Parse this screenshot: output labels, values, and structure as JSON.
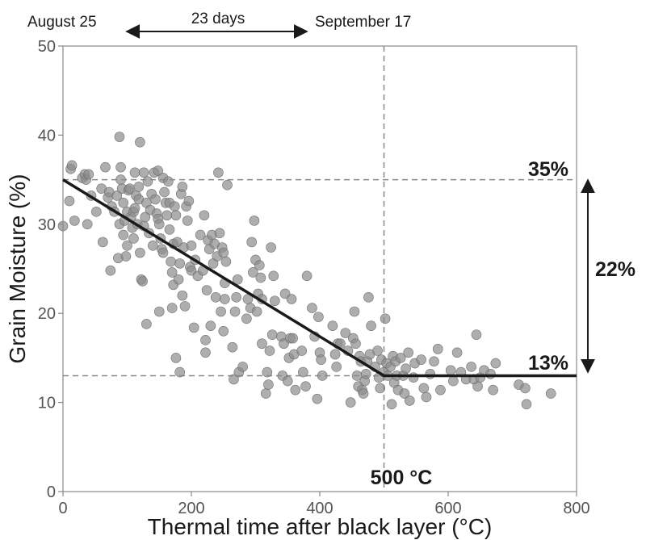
{
  "chart_data": {
    "type": "scatter",
    "title": "",
    "xlabel": "Thermal time after black layer (°C)",
    "ylabel": "Grain Moisture (%)",
    "xlim": [
      0,
      800
    ],
    "ylim": [
      0,
      50
    ],
    "x_ticks": [
      0,
      200,
      400,
      600,
      800
    ],
    "y_ticks": [
      0,
      10,
      20,
      30,
      40,
      50
    ],
    "x_tick_labels": [
      "0",
      "200",
      "400",
      "600",
      "800"
    ],
    "y_tick_labels": [
      "0",
      "10",
      "20",
      "30",
      "40",
      "50"
    ],
    "grid": false,
    "point_color": "#8c8c8c",
    "line_color": "#1a1a1a",
    "series": [
      {
        "type": "scatter",
        "points": [
          [
            0,
            29.8
          ],
          [
            10,
            32.6
          ],
          [
            12,
            36.2
          ],
          [
            14,
            36.6
          ],
          [
            18,
            30.4
          ],
          [
            30,
            35.2
          ],
          [
            34,
            35.6
          ],
          [
            36,
            35.0
          ],
          [
            38,
            30.0
          ],
          [
            40,
            35.6
          ],
          [
            44,
            33.2
          ],
          [
            52,
            31.4
          ],
          [
            60,
            34.0
          ],
          [
            62,
            28.0
          ],
          [
            66,
            36.4
          ],
          [
            70,
            33.0
          ],
          [
            72,
            33.6
          ],
          [
            74,
            24.8
          ],
          [
            76,
            32.0
          ],
          [
            80,
            31.4
          ],
          [
            84,
            33.2
          ],
          [
            86,
            26.2
          ],
          [
            88,
            30.0
          ],
          [
            88,
            39.8
          ],
          [
            90,
            36.4
          ],
          [
            90,
            35.0
          ],
          [
            92,
            34.0
          ],
          [
            94,
            32.4
          ],
          [
            94,
            28.8
          ],
          [
            96,
            30.4
          ],
          [
            98,
            26.4
          ],
          [
            100,
            27.6
          ],
          [
            100,
            31.4
          ],
          [
            102,
            33.8
          ],
          [
            104,
            34.0
          ],
          [
            106,
            30.8
          ],
          [
            108,
            29.6
          ],
          [
            110,
            28.4
          ],
          [
            110,
            31.4
          ],
          [
            112,
            35.8
          ],
          [
            112,
            31.8
          ],
          [
            114,
            33.2
          ],
          [
            116,
            30.0
          ],
          [
            118,
            32.8
          ],
          [
            118,
            34.2
          ],
          [
            120,
            39.2
          ],
          [
            120,
            26.8
          ],
          [
            122,
            23.8
          ],
          [
            124,
            23.6
          ],
          [
            126,
            35.8
          ],
          [
            126,
            29.8
          ],
          [
            128,
            30.8
          ],
          [
            130,
            32.4
          ],
          [
            130,
            18.8
          ],
          [
            132,
            34.8
          ],
          [
            134,
            29.0
          ],
          [
            136,
            31.6
          ],
          [
            138,
            33.4
          ],
          [
            140,
            27.6
          ],
          [
            142,
            35.8
          ],
          [
            144,
            32.8
          ],
          [
            146,
            31.2
          ],
          [
            148,
            36.0
          ],
          [
            148,
            30.6
          ],
          [
            150,
            20.2
          ],
          [
            150,
            30.0
          ],
          [
            152,
            28.4
          ],
          [
            154,
            27.2
          ],
          [
            156,
            26.8
          ],
          [
            156,
            35.2
          ],
          [
            158,
            33.6
          ],
          [
            160,
            32.4
          ],
          [
            162,
            31.0
          ],
          [
            164,
            34.8
          ],
          [
            166,
            32.4
          ],
          [
            166,
            29.4
          ],
          [
            168,
            25.8
          ],
          [
            170,
            24.6
          ],
          [
            170,
            20.6
          ],
          [
            172,
            27.8
          ],
          [
            172,
            23.2
          ],
          [
            174,
            32.0
          ],
          [
            176,
            31.0
          ],
          [
            176,
            15.0
          ],
          [
            178,
            28.0
          ],
          [
            180,
            23.8
          ],
          [
            182,
            13.4
          ],
          [
            182,
            25.6
          ],
          [
            184,
            33.4
          ],
          [
            186,
            34.2
          ],
          [
            186,
            22.0
          ],
          [
            188,
            27.4
          ],
          [
            190,
            20.8
          ],
          [
            192,
            32.0
          ],
          [
            194,
            30.4
          ],
          [
            196,
            32.6
          ],
          [
            198,
            25.2
          ],
          [
            200,
            27.6
          ],
          [
            200,
            24.8
          ],
          [
            204,
            18.4
          ],
          [
            206,
            26.0
          ],
          [
            210,
            24.2
          ],
          [
            214,
            28.8
          ],
          [
            218,
            24.8
          ],
          [
            220,
            31.0
          ],
          [
            222,
            15.6
          ],
          [
            222,
            17.0
          ],
          [
            224,
            22.6
          ],
          [
            226,
            28.2
          ],
          [
            228,
            27.2
          ],
          [
            230,
            18.6
          ],
          [
            232,
            28.8
          ],
          [
            234,
            25.6
          ],
          [
            236,
            27.8
          ],
          [
            238,
            21.8
          ],
          [
            240,
            26.4
          ],
          [
            242,
            35.8
          ],
          [
            244,
            29.0
          ],
          [
            246,
            20.2
          ],
          [
            248,
            27.4
          ],
          [
            250,
            26.8
          ],
          [
            250,
            18.0
          ],
          [
            252,
            21.6
          ],
          [
            252,
            23.4
          ],
          [
            254,
            25.8
          ],
          [
            256,
            34.4
          ],
          [
            264,
            16.2
          ],
          [
            266,
            12.6
          ],
          [
            268,
            20.2
          ],
          [
            270,
            21.8
          ],
          [
            272,
            23.8
          ],
          [
            274,
            13.4
          ],
          [
            280,
            14.0
          ],
          [
            286,
            19.4
          ],
          [
            288,
            21.6
          ],
          [
            292,
            20.6
          ],
          [
            294,
            28.0
          ],
          [
            296,
            24.6
          ],
          [
            298,
            30.4
          ],
          [
            300,
            26.0
          ],
          [
            302,
            20.2
          ],
          [
            304,
            22.2
          ],
          [
            306,
            25.4
          ],
          [
            308,
            24.0
          ],
          [
            310,
            16.6
          ],
          [
            310,
            21.6
          ],
          [
            316,
            11.0
          ],
          [
            318,
            13.4
          ],
          [
            320,
            12.0
          ],
          [
            322,
            15.8
          ],
          [
            324,
            27.4
          ],
          [
            326,
            17.6
          ],
          [
            328,
            24.2
          ],
          [
            330,
            21.4
          ],
          [
            340,
            17.4
          ],
          [
            342,
            13.0
          ],
          [
            344,
            16.6
          ],
          [
            346,
            22.2
          ],
          [
            350,
            12.4
          ],
          [
            352,
            15.0
          ],
          [
            354,
            17.2
          ],
          [
            356,
            21.6
          ],
          [
            358,
            17.2
          ],
          [
            360,
            15.4
          ],
          [
            362,
            11.4
          ],
          [
            372,
            15.8
          ],
          [
            374,
            13.4
          ],
          [
            378,
            11.8
          ],
          [
            380,
            24.2
          ],
          [
            388,
            20.6
          ],
          [
            392,
            17.4
          ],
          [
            396,
            10.4
          ],
          [
            398,
            19.6
          ],
          [
            400,
            15.6
          ],
          [
            402,
            14.8
          ],
          [
            404,
            13.0
          ],
          [
            420,
            18.6
          ],
          [
            424,
            15.4
          ],
          [
            426,
            14.0
          ],
          [
            428,
            16.6
          ],
          [
            432,
            16.6
          ],
          [
            440,
            17.8
          ],
          [
            444,
            15.8
          ],
          [
            448,
            10.0
          ],
          [
            452,
            17.2
          ],
          [
            454,
            20.2
          ],
          [
            456,
            16.6
          ],
          [
            458,
            13.0
          ],
          [
            460,
            11.8
          ],
          [
            462,
            15.2
          ],
          [
            464,
            14.6
          ],
          [
            466,
            11.4
          ],
          [
            468,
            11.0
          ],
          [
            470,
            12.4
          ],
          [
            472,
            13.2
          ],
          [
            474,
            14.6
          ],
          [
            476,
            21.8
          ],
          [
            478,
            15.4
          ],
          [
            480,
            18.6
          ],
          [
            486,
            14.0
          ],
          [
            490,
            15.8
          ],
          [
            492,
            12.8
          ],
          [
            494,
            11.6
          ],
          [
            496,
            14.8
          ],
          [
            500,
            13.4
          ],
          [
            502,
            19.4
          ],
          [
            504,
            14.4
          ],
          [
            506,
            13.0
          ],
          [
            510,
            14.0
          ],
          [
            512,
            9.8
          ],
          [
            514,
            15.2
          ],
          [
            516,
            12.2
          ],
          [
            518,
            14.6
          ],
          [
            520,
            13.0
          ],
          [
            522,
            11.4
          ],
          [
            526,
            15.0
          ],
          [
            530,
            13.0
          ],
          [
            532,
            11.0
          ],
          [
            534,
            13.8
          ],
          [
            538,
            15.6
          ],
          [
            540,
            10.2
          ],
          [
            546,
            12.8
          ],
          [
            548,
            14.4
          ],
          [
            558,
            14.8
          ],
          [
            562,
            11.6
          ],
          [
            566,
            10.6
          ],
          [
            572,
            13.2
          ],
          [
            578,
            14.6
          ],
          [
            584,
            16.0
          ],
          [
            588,
            11.4
          ],
          [
            604,
            13.6
          ],
          [
            608,
            12.4
          ],
          [
            614,
            15.6
          ],
          [
            620,
            13.4
          ],
          [
            628,
            12.6
          ],
          [
            636,
            14.0
          ],
          [
            640,
            12.6
          ],
          [
            644,
            17.6
          ],
          [
            646,
            11.8
          ],
          [
            650,
            12.8
          ],
          [
            656,
            13.6
          ],
          [
            666,
            13.2
          ],
          [
            670,
            11.4
          ],
          [
            674,
            14.4
          ],
          [
            710,
            12.0
          ],
          [
            720,
            11.6
          ],
          [
            722,
            9.8
          ],
          [
            760,
            11.0
          ]
        ]
      },
      {
        "type": "line",
        "points": [
          [
            0,
            35
          ],
          [
            500,
            13
          ],
          [
            800,
            13
          ]
        ]
      }
    ],
    "reference_lines": [
      {
        "orientation": "horizontal",
        "y": 35
      },
      {
        "orientation": "horizontal",
        "y": 13
      },
      {
        "orientation": "vertical",
        "x": 500
      }
    ],
    "annotations": {
      "label_35": "35%",
      "label_13": "13%",
      "label_22": "22%",
      "label_500": "500 °C",
      "date_start": "August 25",
      "date_end": "September 17",
      "span_label": "23 days"
    }
  }
}
